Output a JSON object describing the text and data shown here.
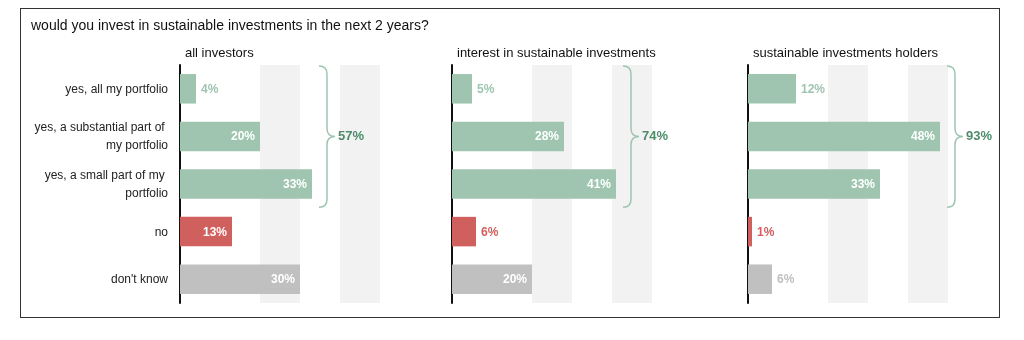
{
  "chart_data": [
    {
      "type": "bar",
      "orientation": "horizontal",
      "title": "would you invest in sustainable investments in the next 2 years?",
      "subtitle": "all investors",
      "categories": [
        "yes, all my portfolio",
        "yes, a substantial part of my portfolio",
        "yes, a small part of my portfolio",
        "no",
        "don't know"
      ],
      "values": [
        4,
        20,
        33,
        13,
        30
      ],
      "value_labels": [
        "4%",
        "20%",
        "33%",
        "13%",
        "30%"
      ],
      "colors": [
        "#9fc5b0",
        "#9fc5b0",
        "#9fc5b0",
        "#d0605e",
        "#c0c0c0"
      ],
      "bands": [
        {
          "axis": "x",
          "from": 20,
          "to": 30,
          "color": "#f2f2f2"
        },
        {
          "axis": "x",
          "from": 40,
          "to": 50,
          "color": "#f2f2f2"
        }
      ],
      "annotations": [
        "57%"
      ],
      "tick_labels": "y"
    },
    {
      "type": "bar",
      "orientation": "horizontal",
      "subtitle": "interest in sustainable investments",
      "categories": [
        "yes, all my portfolio",
        "yes, a substantial part of my portfolio",
        "yes, a small part of my portfolio",
        "no",
        "don't know"
      ],
      "values": [
        5,
        28,
        41,
        6,
        20
      ],
      "value_labels": [
        "5%",
        "28%",
        "41%",
        "6%",
        "20%"
      ],
      "colors": [
        "#9fc5b0",
        "#9fc5b0",
        "#9fc5b0",
        "#d0605e",
        "#c0c0c0"
      ],
      "bands": [
        {
          "axis": "x",
          "from": 20,
          "to": 30,
          "color": "#f2f2f2"
        },
        {
          "axis": "x",
          "from": 40,
          "to": 50,
          "color": "#f2f2f2"
        }
      ],
      "annotations": [
        "74%"
      ],
      "tick_labels": false
    },
    {
      "type": "bar",
      "orientation": "horizontal",
      "subtitle": "sustainable investments holders",
      "categories": [
        "yes, all my portfolio",
        "yes, a substantial part of my portfolio",
        "yes, a small part of my portfolio",
        "no",
        "don't know"
      ],
      "values": [
        12,
        48,
        33,
        1,
        6
      ],
      "value_labels": [
        "12%",
        "48%",
        "33%",
        "1%",
        "6%"
      ],
      "colors": [
        "#9fc5b0",
        "#9fc5b0",
        "#9fc5b0",
        "#d0605e",
        "#c0c0c0"
      ],
      "bands": [
        {
          "axis": "x",
          "from": 20,
          "to": 30,
          "color": "#f2f2f2"
        },
        {
          "axis": "x",
          "from": 40,
          "to": 50,
          "color": "#f2f2f2"
        }
      ],
      "annotations": [
        "93%"
      ],
      "tick_labels": false
    }
  ]
}
